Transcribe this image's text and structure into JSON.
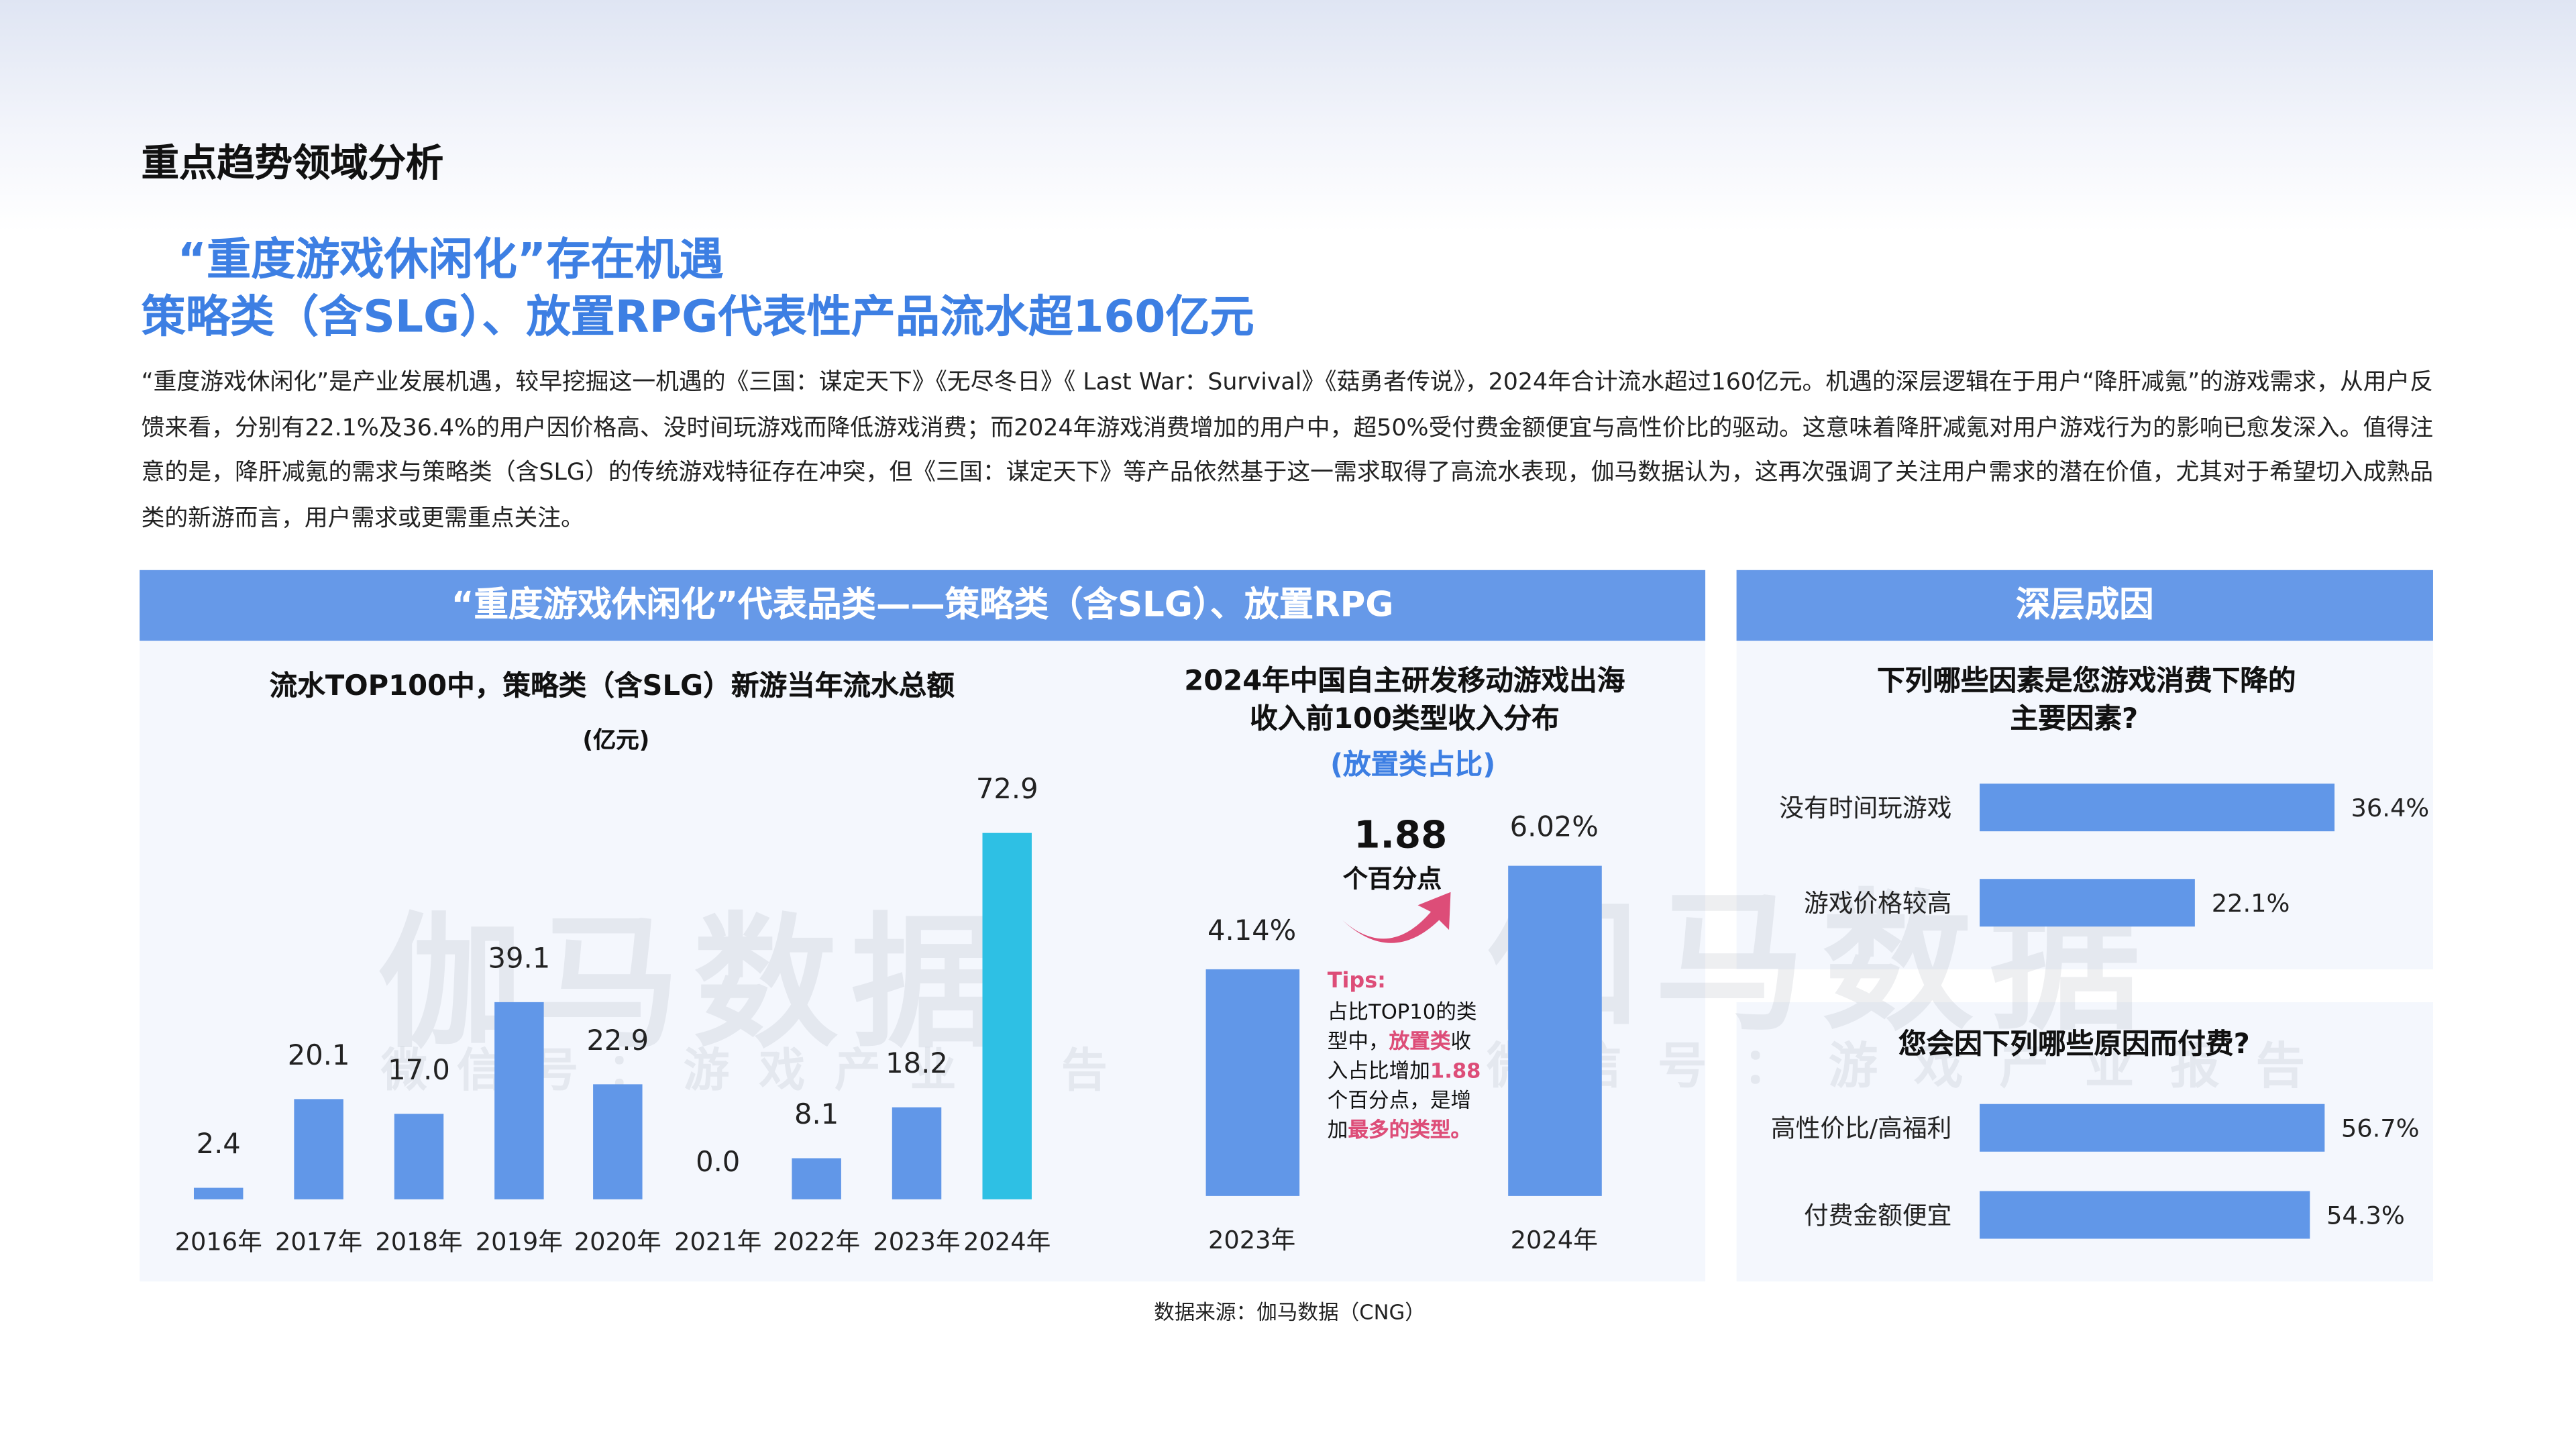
{
  "page": {
    "section_heading": "重点趋势领域分析",
    "title_line1": "“重度游戏休闲化”存在机遇",
    "title_line2": "策略类（含SLG）、放置RPG代表性产品流水超160亿元",
    "paragraph": "“重度游戏休闲化”是产业发展机遇，较早挖掘这一机遇的《三国：谋定天下》《无尽冬日》《 Last War：Survival》《菇勇者传说》，2024年合计流水超过160亿元。机遇的深层逻辑在于用户“降肝减氪”的游戏需求，从用户反馈来看，分别有22.1%及36.4%的用户因价格高、没时间玩游戏而降低游戏消费；而2024年游戏消费增加的用户中，超50%受付费金额便宜与高性价比的驱动。这意味着降肝减氪对用户游戏行为的影响已愈发深入。值得注意的是，降肝减氪的需求与策略类（含SLG）的传统游戏特征存在冲突，但《三国：谋定天下》等产品依然基于这一需求取得了高流水表现，伽马数据认为，这再次强调了关注用户需求的潜在价值，尤其对于希望切入成熟品类的新游而言，用户需求或更需重点关注。",
    "source": "数据来源：伽马数据（CNG）",
    "watermark_main": "伽马数据",
    "watermark_sub": "微信号：游戏产业报告"
  },
  "left_panel": {
    "header": "“重度游戏休闲化”代表品类——策略类（含SLG）、放置RPG"
  },
  "right_panel": {
    "header": "深层成因"
  },
  "tips": {
    "label": "Tips:",
    "text_a": "占比TOP10的类型中，",
    "text_b": "放置类",
    "text_c": "收入占比增加",
    "text_d": "1.88",
    "text_e": "个百分点，是增加",
    "text_f": "最多的类型。"
  },
  "delta": {
    "value": "1.88",
    "unit": "个百分点"
  },
  "colors": {
    "bar": "#6197e8",
    "highlight_bar": "#2ec0e4",
    "accent": "#dd4d78",
    "title_blue": "#3d7fe3"
  },
  "chart_data": [
    {
      "type": "bar",
      "title": "流水TOP100中，策略类（含SLG）新游当年流水总额",
      "subtitle": "(亿元)",
      "categories": [
        "2016年",
        "2017年",
        "2018年",
        "2019年",
        "2020年",
        "2021年",
        "2022年",
        "2023年",
        "2024年"
      ],
      "values": [
        2.4,
        20.1,
        17.0,
        39.1,
        22.9,
        0.0,
        8.1,
        18.2,
        72.9
      ],
      "labels": [
        "2.4",
        "20.1",
        "17.0",
        "39.1",
        "22.9",
        "0.0",
        "8.1",
        "18.2",
        "72.9"
      ],
      "highlight_index": 8
    },
    {
      "type": "bar",
      "title": "2024年中国自主研发移动游戏出海",
      "title_line2": "收入前100类型收入分布",
      "subtitle": "(放置类占比)",
      "categories": [
        "2023年",
        "2024年"
      ],
      "values": [
        4.14,
        6.02
      ],
      "labels": [
        "4.14%",
        "6.02%"
      ]
    },
    {
      "type": "bar",
      "orientation": "horizontal",
      "title": "下列哪些因素是您游戏消费下降的",
      "title_line2": "主要因素?",
      "categories": [
        "没有时间玩游戏",
        "游戏价格较高"
      ],
      "values": [
        36.4,
        22.1
      ],
      "labels": [
        "36.4%",
        "22.1%"
      ]
    },
    {
      "type": "bar",
      "orientation": "horizontal",
      "title": "您会因下列哪些原因而付费?",
      "categories": [
        "高性价比/高福利",
        "付费金额便宜"
      ],
      "values": [
        56.7,
        54.3
      ],
      "labels": [
        "56.7%",
        "54.3%"
      ]
    }
  ]
}
